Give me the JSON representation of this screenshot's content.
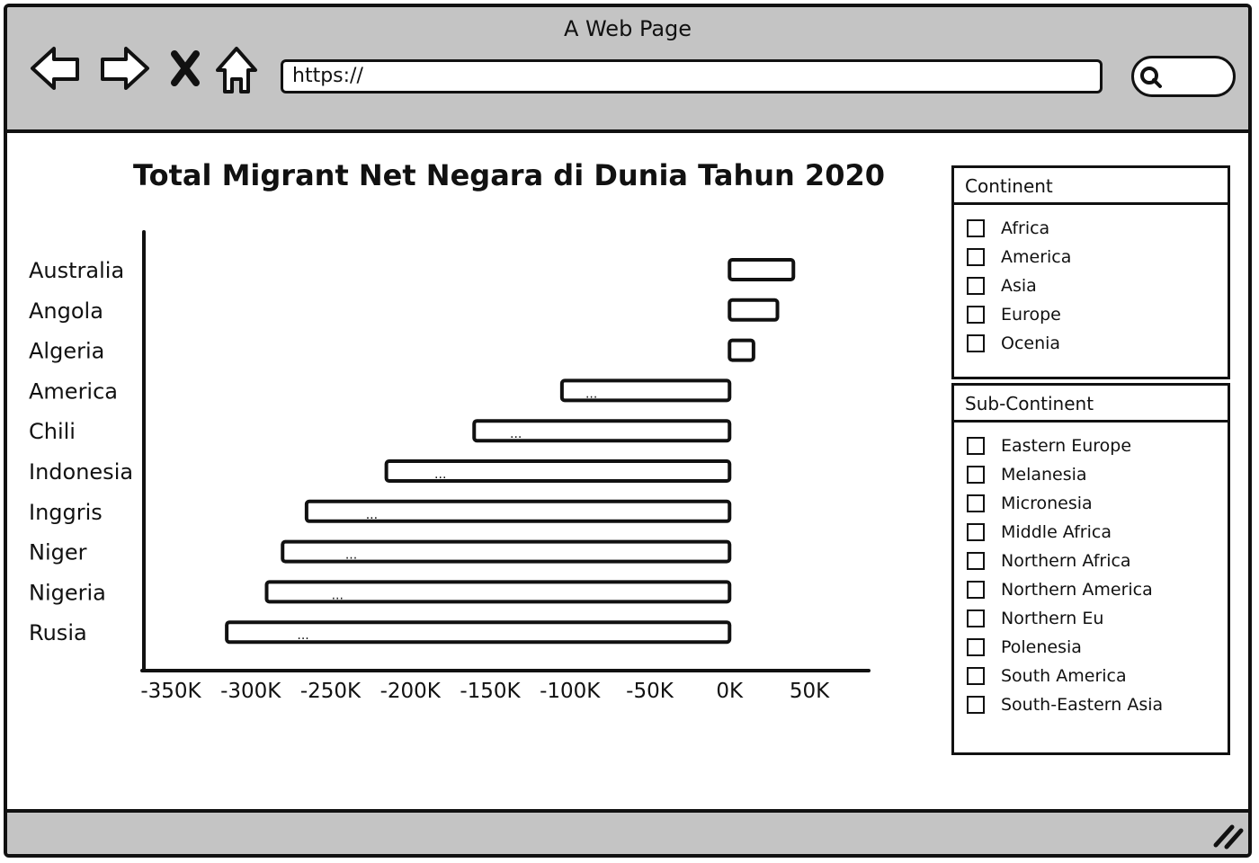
{
  "window": {
    "title": "A Web Page",
    "url": "https://"
  },
  "icons": {
    "back": "arrow-left-icon",
    "forward": "arrow-right-icon",
    "stop": "close-icon",
    "home": "home-icon",
    "search": "search-icon",
    "resize": "resize-grip-icon"
  },
  "chart_data": {
    "type": "bar",
    "orientation": "horizontal",
    "title": "Total Migrant Net Negara di Dunia Tahun 2020",
    "categories": [
      "Australia",
      "Angola",
      "Algeria",
      "America",
      "Chili",
      "Indonesia",
      "Inggris",
      "Niger",
      "Nigeria",
      "Rusia"
    ],
    "values": [
      40000,
      30000,
      15000,
      -105000,
      -160000,
      -215000,
      -265000,
      -280000,
      -290000,
      -315000
    ],
    "data_labels": [
      "",
      "",
      "",
      "...",
      "...",
      "...",
      "...",
      "...",
      "...",
      "..."
    ],
    "xlim": [
      -350000,
      50000
    ],
    "x_ticks": [
      -350000,
      -300000,
      -250000,
      -200000,
      -150000,
      -100000,
      -50000,
      0,
      50000
    ],
    "x_tick_labels": [
      "-350K",
      "-300K",
      "-250K",
      "-200K",
      "-150K",
      "-100K",
      "-50K",
      "0K",
      "50K"
    ],
    "grid": false
  },
  "filters": {
    "continent": {
      "title": "Continent",
      "options": [
        "Africa",
        "America",
        "Asia",
        "Europe",
        "Ocenia"
      ]
    },
    "subcontinent": {
      "title": "Sub-Continent",
      "options": [
        "Eastern Europe",
        "Melanesia",
        "Micronesia",
        "Middle Africa",
        "Northern Africa",
        "Northern America",
        "Northern Eu",
        "Polenesia",
        "South America",
        "South-Eastern Asia"
      ]
    }
  }
}
